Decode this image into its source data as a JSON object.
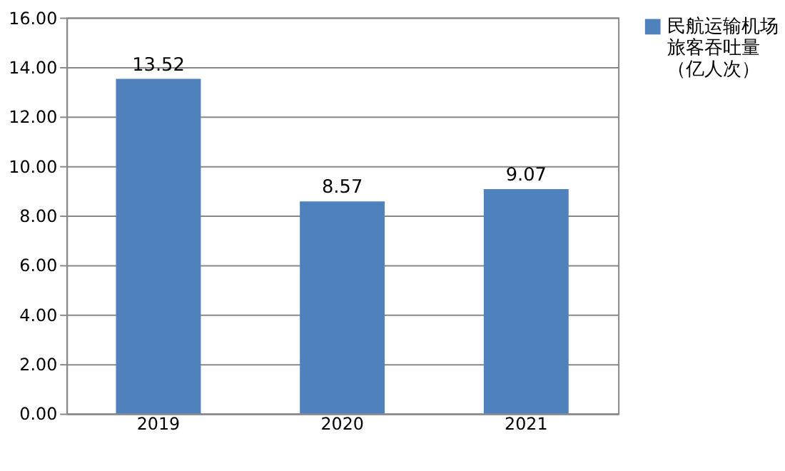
{
  "chart_data": {
    "type": "bar",
    "categories": [
      "2019",
      "2020",
      "2021"
    ],
    "series": [
      {
        "name": "民航运输机场旅客吞吐量（亿人次）",
        "color": "#4f81bd",
        "values": [
          13.52,
          8.57,
          9.07
        ]
      }
    ],
    "ylim": [
      0,
      16
    ],
    "yticks": [
      {
        "value": 0,
        "label": "0.00"
      },
      {
        "value": 2,
        "label": "2.00"
      },
      {
        "value": 4,
        "label": "4.00"
      },
      {
        "value": 6,
        "label": "6.00"
      },
      {
        "value": 8,
        "label": "8.00"
      },
      {
        "value": 10,
        "label": "10.00"
      },
      {
        "value": 12,
        "label": "12.00"
      },
      {
        "value": 14,
        "label": "14.00"
      },
      {
        "value": 16,
        "label": "16.00"
      }
    ],
    "grid": "y",
    "legend": "right",
    "data_labels": true
  }
}
